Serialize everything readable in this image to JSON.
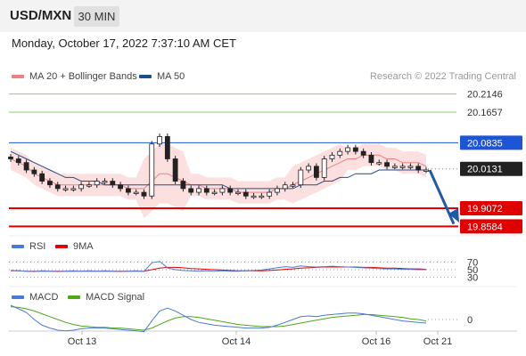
{
  "header": {
    "pair": "USD/MXN",
    "timeframe": "30 MIN"
  },
  "datetime": "Monday, October 17, 2022 7:37:10 AM CET",
  "legend": {
    "ma20": "MA 20 + Bollinger Bands",
    "ma50": "MA 50",
    "credit": "Research © 2022 Trading Central",
    "rsi": "RSI",
    "rsi_ma": "9MA",
    "macd": "MACD",
    "macd_signal": "MACD Signal"
  },
  "colors": {
    "ma20": "#f08080",
    "ma50": "#1f4e8c",
    "resistance": "#8fd16b",
    "pivot": "#1e55d6",
    "support": "#e00000",
    "current": "#222222",
    "rsi": "#4a7ad8",
    "rsi_ma": "#e00000",
    "macd": "#4a7ad8",
    "macd_signal": "#4ca81a",
    "arrow": "#1f5aa6",
    "band": "#fbdada"
  },
  "levels": [
    {
      "name": "resistance-2",
      "value": "20.2146",
      "kind": "resistance",
      "y_value": 20.2146
    },
    {
      "name": "resistance-1",
      "value": "20.1657",
      "kind": "resistance",
      "y_value": 20.1657
    },
    {
      "name": "pivot",
      "value": "20.0835",
      "kind": "pivot",
      "y_value": 20.0835
    },
    {
      "name": "current-price",
      "value": "20.0131",
      "kind": "current",
      "y_value": 20.0131
    },
    {
      "name": "support-1",
      "value": "19.9072",
      "kind": "support",
      "y_value": 19.9072
    },
    {
      "name": "support-2",
      "value": "19.8584",
      "kind": "support",
      "y_value": 19.8584
    }
  ],
  "rsi_ticks": [
    "70",
    "50",
    "30"
  ],
  "macd_ticks": [
    "0"
  ],
  "x_labels": [
    "Oct 13",
    "Oct 14",
    "Oct 16",
    "Oct 21"
  ],
  "chart_data": {
    "type": "candlestick",
    "y_axis": {
      "min": 19.84,
      "max": 20.24
    },
    "x_axis_labels": [
      "Oct 13",
      "Oct 14",
      "Oct 16",
      "Oct 21"
    ],
    "candles_close": [
      20.04,
      20.03,
      20.01,
      20.0,
      19.98,
      19.97,
      19.96,
      19.96,
      19.96,
      19.97,
      19.97,
      19.98,
      19.98,
      19.97,
      19.96,
      19.95,
      19.95,
      19.94,
      20.08,
      20.1,
      20.04,
      19.98,
      19.96,
      19.95,
      19.96,
      19.95,
      19.95,
      19.96,
      19.95,
      19.95,
      19.94,
      19.94,
      19.94,
      19.95,
      19.96,
      19.97,
      19.97,
      20.01,
      20.02,
      19.99,
      20.04,
      20.05,
      20.06,
      20.07,
      20.06,
      20.05,
      20.03,
      20.03,
      20.02,
      20.02,
      20.02,
      20.02,
      20.01,
      20.01
    ],
    "ma20": [
      20.04,
      20.03,
      20.02,
      20.0,
      19.99,
      19.98,
      19.97,
      19.97,
      19.97,
      19.97,
      19.97,
      19.97,
      19.97,
      19.97,
      19.97,
      19.96,
      19.96,
      19.96,
      19.98,
      20.0,
      20.0,
      19.99,
      19.98,
      19.97,
      19.97,
      19.96,
      19.96,
      19.96,
      19.96,
      19.95,
      19.95,
      19.95,
      19.95,
      19.95,
      19.96,
      19.96,
      19.97,
      19.98,
      19.99,
      20.0,
      20.01,
      20.02,
      20.03,
      20.04,
      20.04,
      20.05,
      20.05,
      20.05,
      20.04,
      20.04,
      20.03,
      20.03,
      20.03,
      20.02
    ],
    "ma50": [
      20.06,
      20.05,
      20.04,
      20.03,
      20.02,
      20.01,
      20.0,
      19.99,
      19.99,
      19.98,
      19.98,
      19.98,
      19.97,
      19.97,
      19.97,
      19.97,
      19.97,
      19.97,
      19.97,
      19.97,
      19.97,
      19.97,
      19.97,
      19.97,
      19.97,
      19.97,
      19.97,
      19.97,
      19.96,
      19.96,
      19.96,
      19.96,
      19.96,
      19.96,
      19.96,
      19.96,
      19.96,
      19.97,
      19.97,
      19.97,
      19.98,
      19.98,
      19.99,
      19.99,
      20.0,
      20.0,
      20.0,
      20.01,
      20.01,
      20.01,
      20.01,
      20.01,
      20.01,
      20.01
    ],
    "rsi": [
      48,
      47,
      46,
      45,
      47,
      46,
      45,
      46,
      47,
      46,
      47,
      46,
      47,
      46,
      45,
      46,
      47,
      45,
      68,
      72,
      55,
      50,
      48,
      47,
      46,
      47,
      46,
      47,
      46,
      46,
      47,
      48,
      49,
      52,
      55,
      58,
      56,
      60,
      58,
      57,
      58,
      59,
      58,
      57,
      56,
      55,
      54,
      53,
      52,
      52,
      51,
      51,
      50,
      50
    ],
    "rsi_ma": [
      47,
      47,
      46,
      46,
      46,
      46,
      46,
      46,
      46,
      46,
      46,
      46,
      46,
      46,
      46,
      46,
      46,
      46,
      50,
      54,
      56,
      56,
      55,
      53,
      52,
      51,
      50,
      49,
      48,
      47,
      47,
      47,
      47,
      48,
      49,
      51,
      52,
      54,
      55,
      56,
      57,
      57,
      57,
      57,
      57,
      56,
      56,
      55,
      54,
      54,
      53,
      52,
      52,
      51
    ],
    "macd": [
      0.02,
      0.015,
      0.01,
      0.0,
      -0.008,
      -0.012,
      -0.015,
      -0.016,
      -0.015,
      -0.013,
      -0.012,
      -0.012,
      -0.012,
      -0.013,
      -0.014,
      -0.015,
      -0.016,
      -0.017,
      -0.002,
      0.012,
      0.016,
      0.012,
      0.006,
      0.0,
      -0.004,
      -0.006,
      -0.008,
      -0.009,
      -0.01,
      -0.011,
      -0.012,
      -0.012,
      -0.012,
      -0.011,
      -0.008,
      -0.004,
      0.0,
      0.004,
      0.005,
      0.004,
      0.006,
      0.007,
      0.008,
      0.009,
      0.009,
      0.008,
      0.006,
      0.004,
      0.002,
      0.0,
      -0.002,
      -0.003,
      -0.004,
      -0.005
    ],
    "macd_signal": [
      0.018,
      0.017,
      0.015,
      0.012,
      0.008,
      0.004,
      0.0,
      -0.004,
      -0.007,
      -0.009,
      -0.01,
      -0.011,
      -0.011,
      -0.012,
      -0.012,
      -0.013,
      -0.014,
      -0.015,
      -0.012,
      -0.007,
      -0.002,
      0.002,
      0.004,
      0.004,
      0.003,
      0.001,
      -0.001,
      -0.003,
      -0.005,
      -0.007,
      -0.008,
      -0.009,
      -0.01,
      -0.01,
      -0.01,
      -0.009,
      -0.007,
      -0.005,
      -0.003,
      -0.001,
      0.001,
      0.003,
      0.004,
      0.005,
      0.006,
      0.007,
      0.007,
      0.006,
      0.005,
      0.004,
      0.003,
      0.001,
      0.0,
      -0.002
    ]
  }
}
